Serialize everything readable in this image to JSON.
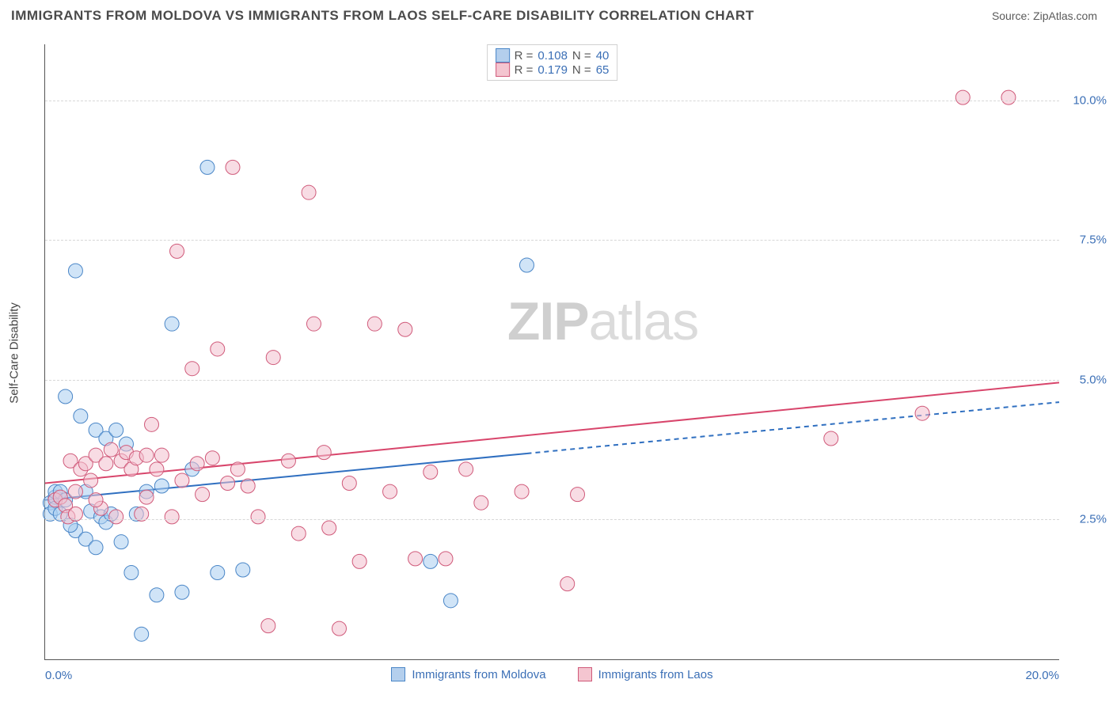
{
  "title": "IMMIGRANTS FROM MOLDOVA VS IMMIGRANTS FROM LAOS SELF-CARE DISABILITY CORRELATION CHART",
  "source": "Source: ZipAtlas.com",
  "ylabel": "Self-Care Disability",
  "watermark_bold": "ZIP",
  "watermark_light": "atlas",
  "chart": {
    "type": "scatter",
    "xlim": [
      0,
      20
    ],
    "ylim": [
      0,
      11
    ],
    "xticks": [
      {
        "v": 0,
        "label": "0.0%"
      },
      {
        "v": 20,
        "label": "20.0%"
      }
    ],
    "yticks": [
      {
        "v": 2.5,
        "label": "2.5%"
      },
      {
        "v": 5.0,
        "label": "5.0%"
      },
      {
        "v": 7.5,
        "label": "7.5%"
      },
      {
        "v": 10.0,
        "label": "10.0%"
      }
    ],
    "grid_color": "#d7d7d7",
    "background_color": "#ffffff",
    "marker_radius": 9,
    "marker_opacity": 0.55,
    "series": [
      {
        "name": "Immigrants from Moldova",
        "color_fill": "#a9cdf0",
        "color_stroke": "#4a86c7",
        "R": "0.108",
        "N": "40",
        "trend": {
          "y_at_x0": 2.85,
          "y_at_x20": 4.6,
          "solid_until_x": 9.5,
          "line_color": "#2f6fc0",
          "line_width": 2
        },
        "points": [
          [
            0.1,
            2.8
          ],
          [
            0.1,
            2.6
          ],
          [
            0.2,
            2.9
          ],
          [
            0.2,
            3.0
          ],
          [
            0.2,
            2.7
          ],
          [
            0.3,
            2.6
          ],
          [
            0.3,
            3.0
          ],
          [
            0.4,
            2.85
          ],
          [
            0.4,
            4.7
          ],
          [
            0.6,
            6.95
          ],
          [
            0.6,
            2.3
          ],
          [
            0.7,
            4.35
          ],
          [
            0.8,
            2.15
          ],
          [
            0.8,
            3.0
          ],
          [
            0.9,
            2.65
          ],
          [
            1.0,
            4.1
          ],
          [
            1.1,
            2.55
          ],
          [
            1.2,
            3.95
          ],
          [
            1.2,
            2.45
          ],
          [
            1.3,
            2.6
          ],
          [
            1.4,
            4.1
          ],
          [
            1.5,
            2.1
          ],
          [
            1.6,
            3.85
          ],
          [
            1.7,
            1.55
          ],
          [
            1.8,
            2.6
          ],
          [
            1.9,
            0.45
          ],
          [
            2.0,
            3.0
          ],
          [
            2.2,
            1.15
          ],
          [
            2.3,
            3.1
          ],
          [
            2.5,
            6.0
          ],
          [
            2.7,
            1.2
          ],
          [
            2.9,
            3.4
          ],
          [
            3.2,
            8.8
          ],
          [
            3.4,
            1.55
          ],
          [
            3.9,
            1.6
          ],
          [
            7.6,
            1.75
          ],
          [
            8.0,
            1.05
          ],
          [
            9.5,
            7.05
          ],
          [
            1.0,
            2.0
          ],
          [
            0.5,
            2.4
          ]
        ]
      },
      {
        "name": "Immigrants from Laos",
        "color_fill": "#f3c0cd",
        "color_stroke": "#d05a7a",
        "R": "0.179",
        "N": "65",
        "trend": {
          "y_at_x0": 3.15,
          "y_at_x20": 4.95,
          "solid_until_x": 20,
          "line_color": "#d8456b",
          "line_width": 2
        },
        "points": [
          [
            0.2,
            2.85
          ],
          [
            0.3,
            2.9
          ],
          [
            0.4,
            2.75
          ],
          [
            0.45,
            2.55
          ],
          [
            0.5,
            3.55
          ],
          [
            0.6,
            3.0
          ],
          [
            0.7,
            3.4
          ],
          [
            0.8,
            3.5
          ],
          [
            0.9,
            3.2
          ],
          [
            1.0,
            3.65
          ],
          [
            1.1,
            2.7
          ],
          [
            1.2,
            3.5
          ],
          [
            1.3,
            3.75
          ],
          [
            1.4,
            2.55
          ],
          [
            1.5,
            3.55
          ],
          [
            1.6,
            3.7
          ],
          [
            1.7,
            3.4
          ],
          [
            1.8,
            3.6
          ],
          [
            1.9,
            2.6
          ],
          [
            2.0,
            3.65
          ],
          [
            2.1,
            4.2
          ],
          [
            2.2,
            3.4
          ],
          [
            2.3,
            3.65
          ],
          [
            2.5,
            2.55
          ],
          [
            2.6,
            7.3
          ],
          [
            2.7,
            3.2
          ],
          [
            2.9,
            5.2
          ],
          [
            3.0,
            3.5
          ],
          [
            3.1,
            2.95
          ],
          [
            3.3,
            3.6
          ],
          [
            3.4,
            5.55
          ],
          [
            3.6,
            3.15
          ],
          [
            3.7,
            8.8
          ],
          [
            3.8,
            3.4
          ],
          [
            4.0,
            3.1
          ],
          [
            4.2,
            2.55
          ],
          [
            4.4,
            0.6
          ],
          [
            4.5,
            5.4
          ],
          [
            4.8,
            3.55
          ],
          [
            5.0,
            2.25
          ],
          [
            5.2,
            8.35
          ],
          [
            5.3,
            6.0
          ],
          [
            5.5,
            3.7
          ],
          [
            5.6,
            2.35
          ],
          [
            5.8,
            0.55
          ],
          [
            6.0,
            3.15
          ],
          [
            6.2,
            1.75
          ],
          [
            6.5,
            6.0
          ],
          [
            6.8,
            3.0
          ],
          [
            7.1,
            5.9
          ],
          [
            7.3,
            1.8
          ],
          [
            7.6,
            3.35
          ],
          [
            7.9,
            1.8
          ],
          [
            8.3,
            3.4
          ],
          [
            8.6,
            2.8
          ],
          [
            9.4,
            3.0
          ],
          [
            10.3,
            1.35
          ],
          [
            10.5,
            2.95
          ],
          [
            15.5,
            3.95
          ],
          [
            17.3,
            4.4
          ],
          [
            18.1,
            10.05
          ],
          [
            19.0,
            10.05
          ],
          [
            1.0,
            2.85
          ],
          [
            0.6,
            2.6
          ],
          [
            2.0,
            2.9
          ]
        ]
      }
    ]
  },
  "legend_top": {
    "labels": {
      "R": "R =",
      "N": "N ="
    }
  },
  "legend_bottom": [
    {
      "series": 0
    },
    {
      "series": 1
    }
  ]
}
